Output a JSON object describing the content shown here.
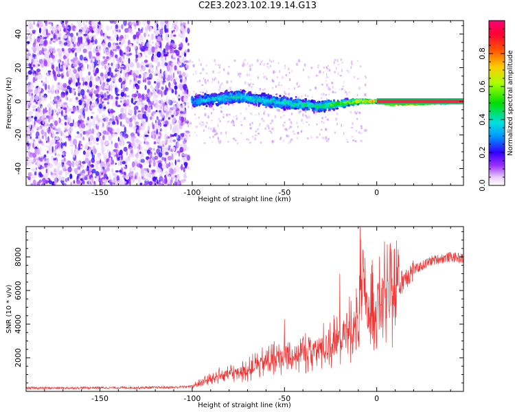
{
  "title": "C2E3.2023.102.19.14.G13",
  "chart_data": [
    {
      "type": "heatmap",
      "title": "",
      "xlabel": "Height of straight line (km)",
      "ylabel": "Frequency (Hz)",
      "xlim": [
        -190,
        47
      ],
      "ylim": [
        -50,
        48
      ],
      "x_ticks": [
        "-150",
        "-100",
        "-50",
        "0"
      ],
      "y_ticks": [
        "-40",
        "-20",
        "0",
        "20",
        "40"
      ],
      "grid": false,
      "colorbar": {
        "label": "Normalized spectral amplitude",
        "range": [
          0,
          1
        ],
        "ticks": [
          "0.0",
          "0.2",
          "0.4",
          "0.6",
          "0.8"
        ]
      },
      "description_points": [
        {
          "x": -190,
          "freq_center": 0,
          "spread": 48,
          "amplitude": 0.15
        },
        {
          "x": -105,
          "freq_center": 0,
          "spread": 48,
          "amplitude": 0.15
        },
        {
          "x": -100,
          "freq_center": 0,
          "spread": 5,
          "amplitude": 0.35
        },
        {
          "x": -75,
          "freq_center": 3,
          "spread": 5,
          "amplitude": 0.4
        },
        {
          "x": -50,
          "freq_center": -1,
          "spread": 5,
          "amplitude": 0.4
        },
        {
          "x": -30,
          "freq_center": -3,
          "spread": 4,
          "amplitude": 0.45
        },
        {
          "x": -10,
          "freq_center": 0,
          "spread": 2,
          "amplitude": 0.7
        },
        {
          "x": 0,
          "freq_center": 0,
          "spread": 1,
          "amplitude": 0.85
        },
        {
          "x": 8,
          "freq_center": -1.5,
          "spread": 1,
          "amplitude": 0.85
        },
        {
          "x": 47,
          "freq_center": 0,
          "spread": 1,
          "amplitude": 0.9
        }
      ]
    },
    {
      "type": "line",
      "title": "",
      "xlabel": "Height of straight line (km)",
      "ylabel": "SNR (10 * v/v)",
      "xlim": [
        -190,
        47
      ],
      "ylim": [
        0,
        9800
      ],
      "x_ticks": [
        "-150",
        "-100",
        "-50",
        "0"
      ],
      "y_ticks": [
        "2000",
        "4000",
        "6000",
        "8000"
      ],
      "grid": false,
      "series": [
        {
          "color": "#ee3333",
          "x": [
            -190,
            -170,
            -150,
            -130,
            -110,
            -100,
            -95,
            -90,
            -85,
            -80,
            -75,
            -70,
            -65,
            -60,
            -55,
            -50,
            -45,
            -40,
            -35,
            -30,
            -25,
            -20,
            -15,
            -10,
            -8,
            -5,
            0,
            5,
            8,
            10,
            12,
            15,
            20,
            25,
            30,
            35,
            40,
            47
          ],
          "y": [
            200,
            200,
            220,
            220,
            240,
            300,
            500,
            700,
            900,
            1000,
            1100,
            1200,
            1500,
            1700,
            1900,
            2000,
            2100,
            2200,
            2300,
            2500,
            2700,
            3000,
            3500,
            4000,
            6000,
            4500,
            5000,
            5500,
            5300,
            5600,
            6200,
            6800,
            7200,
            7500,
            7800,
            7900,
            8000,
            7900
          ],
          "peaks": [
            {
              "x": -9,
              "y": 9800
            },
            {
              "x": -7,
              "y": 7300
            },
            {
              "x": -20,
              "y": 7000
            },
            {
              "x": -50,
              "y": 4300
            },
            {
              "x": 5,
              "y": 2900
            }
          ]
        }
      ]
    }
  ]
}
